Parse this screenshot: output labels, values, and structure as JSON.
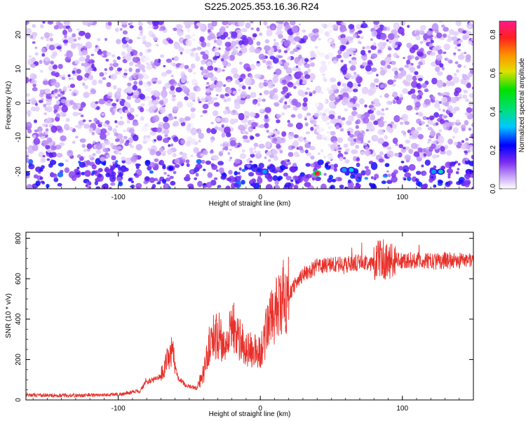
{
  "title": "S225.2025.353.16.36.R24",
  "chart_data": [
    {
      "type": "heatmap",
      "xlabel": "Height of straight line (km)",
      "ylabel": "Frequency (Hz)",
      "xlim": [
        -165,
        150
      ],
      "ylim": [
        -25,
        24
      ],
      "xticks": [
        -100,
        0,
        100
      ],
      "xtick_labels": [
        "-100",
        "0",
        "100"
      ],
      "yticks": [
        -20,
        -10,
        0,
        10,
        20
      ],
      "ytick_labels": [
        "-20",
        "-10",
        "0",
        "10",
        "20"
      ],
      "colorbar": {
        "label": "Normalized spectral amplitude",
        "range": [
          0,
          0.87
        ],
        "ticks": [
          0.0,
          0.2,
          0.4,
          0.6,
          0.8
        ],
        "tick_labels": [
          "0.0",
          "0.2",
          "0.4",
          "0.6",
          "0.8"
        ]
      },
      "hotspots": [
        {
          "x": -63,
          "y": -19,
          "amp": 0.22
        },
        {
          "x": -1,
          "y": -19.5,
          "amp": 0.25
        },
        {
          "x": 3,
          "y": -20,
          "amp": 0.3
        },
        {
          "x": 40,
          "y": -20.5,
          "amp": 0.8
        },
        {
          "x": 59,
          "y": -19.5,
          "amp": 0.3
        },
        {
          "x": 64,
          "y": -19.5,
          "amp": 0.35
        },
        {
          "x": 122,
          "y": -20,
          "amp": 0.3
        },
        {
          "x": 127,
          "y": -20,
          "amp": 0.35
        }
      ]
    },
    {
      "type": "line",
      "xlabel": "Height of straight line (km)",
      "ylabel": "SNR (10 * v/v)",
      "xlim": [
        -165,
        150
      ],
      "ylim": [
        0,
        830
      ],
      "xticks": [
        -100,
        0,
        100
      ],
      "xtick_labels": [
        "-100",
        "0",
        "100"
      ],
      "yticks": [
        0,
        200,
        400,
        600,
        800
      ],
      "ytick_labels": [
        "0",
        "200",
        "400",
        "600",
        "800"
      ],
      "color": "#e8302a",
      "series": [
        {
          "name": "SNR",
          "x": [
            -165,
            -150,
            -130,
            -110,
            -95,
            -85,
            -80,
            -75,
            -70,
            -65,
            -62,
            -58,
            -52,
            -45,
            -40,
            -35,
            -30,
            -25,
            -20,
            -15,
            -10,
            -5,
            0,
            5,
            10,
            15,
            20,
            25,
            30,
            40,
            50,
            60,
            70,
            80,
            85,
            90,
            100,
            110,
            120,
            130,
            140,
            150
          ],
          "y": [
            25,
            22,
            22,
            25,
            30,
            45,
            90,
            100,
            120,
            200,
            240,
            110,
            70,
            60,
            130,
            300,
            330,
            250,
            380,
            300,
            260,
            240,
            230,
            370,
            430,
            470,
            520,
            580,
            620,
            660,
            670,
            670,
            680,
            680,
            700,
            685,
            690,
            690,
            685,
            690,
            690,
            695
          ]
        }
      ]
    }
  ]
}
